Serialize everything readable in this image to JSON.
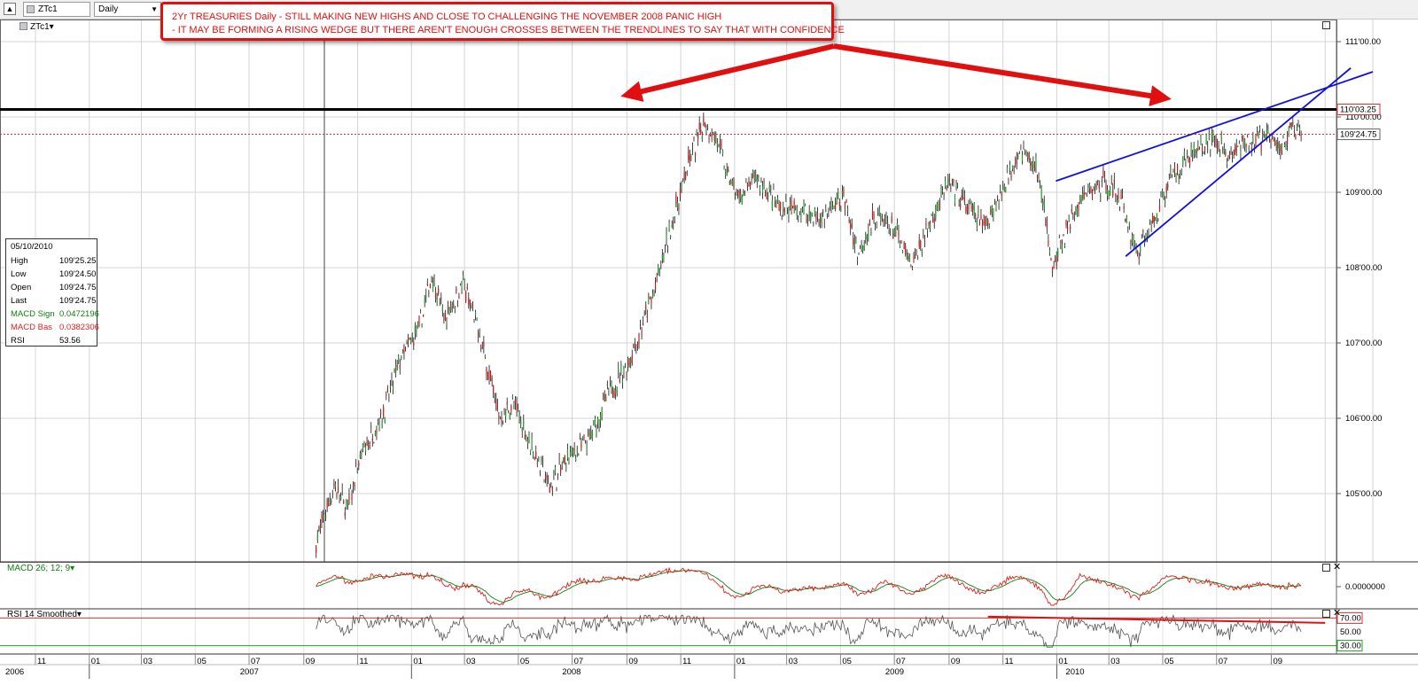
{
  "toolbar": {
    "ric": "ZTc1",
    "interval": "Daily"
  },
  "legend": {
    "main_series": "ZTc1▾"
  },
  "annotation": {
    "line1": "2Yr TREASURIES Daily - STILL MAKING NEW HIGHS AND CLOSE TO CHALLENGING THE NOVEMBER 2008 PANIC HIGH",
    "line2": "- IT MAY BE FORMING A RISING WEDGE BUT THERE AREN'T ENOUGH CROSSES BETWEEN THE TRENDLINES TO SAY THAT WITH CONFIDENCE"
  },
  "info_box": {
    "date": "05/10/2010",
    "rows": [
      {
        "label": "High",
        "value": "109'25.25"
      },
      {
        "label": "Low",
        "value": "109'24.50"
      },
      {
        "label": "Open",
        "value": "109'24.75"
      },
      {
        "label": "Last",
        "value": "109'24.75"
      },
      {
        "label": "MACD Sign",
        "value": "0.0472196"
      },
      {
        "label": "MACD Bas",
        "value": "0.0382306"
      },
      {
        "label": "RSI",
        "value": "53.56"
      }
    ]
  },
  "panels": {
    "macd_label": "MACD 26; 12; 9▾",
    "rsi_label": "RSI 14 Smoothed▾",
    "macd_zero": "0.0000000",
    "rsi_levels": [
      "70.00",
      "50.00",
      "30.00"
    ]
  },
  "colors": {
    "bull": "#2a9a2a",
    "bear": "#c02020",
    "annotation": "#e01010",
    "trendline": "#1010e0",
    "resistance": "#000000",
    "macd_signal": "#108010",
    "macd_base": "#e02020",
    "rsi_line": "#555555",
    "level_70": "#e03030",
    "level_30": "#20a020"
  },
  "chart_data": {
    "type": "candlestick",
    "title": "",
    "xlabel": "",
    "ylabel": "",
    "y_axis": {
      "range": [
        104.32,
        111.1
      ],
      "ticks": [
        {
          "value": 105.0,
          "label": "105'00.00"
        },
        {
          "value": 106.0,
          "label": "106'00.00"
        },
        {
          "value": 107.0,
          "label": "107'00.00"
        },
        {
          "value": 108.0,
          "label": "108'00.00"
        },
        {
          "value": 109.0,
          "label": "109'00.00"
        },
        {
          "value": 110.0,
          "label": "110'00.00"
        },
        {
          "value": 111.0,
          "label": "111'00.00"
        }
      ],
      "markers": [
        {
          "value": 110.1,
          "label": "110'03.25",
          "style": "resistance"
        },
        {
          "value": 109.77,
          "label": "109'24.75",
          "style": "last"
        }
      ]
    },
    "x_axis": {
      "month_ticks": [
        {
          "label": "11",
          "date": "2006-11"
        },
        {
          "label": "01",
          "date": "2007-01"
        },
        {
          "label": "03",
          "date": "2007-03"
        },
        {
          "label": "05",
          "date": "2007-05"
        },
        {
          "label": "07",
          "date": "2007-07"
        },
        {
          "label": "09",
          "date": "2007-09"
        },
        {
          "label": "11",
          "date": "2007-11"
        },
        {
          "label": "01",
          "date": "2008-01"
        },
        {
          "label": "03",
          "date": "2008-03"
        },
        {
          "label": "05",
          "date": "2008-05"
        },
        {
          "label": "07",
          "date": "2008-07"
        },
        {
          "label": "09",
          "date": "2008-09"
        },
        {
          "label": "11",
          "date": "2008-11"
        },
        {
          "label": "01",
          "date": "2009-01"
        },
        {
          "label": "03",
          "date": "2009-03"
        },
        {
          "label": "05",
          "date": "2009-05"
        },
        {
          "label": "07",
          "date": "2009-07"
        },
        {
          "label": "09",
          "date": "2009-09"
        },
        {
          "label": "11",
          "date": "2009-11"
        },
        {
          "label": "01",
          "date": "2010-01"
        },
        {
          "label": "03",
          "date": "2010-03"
        },
        {
          "label": "05",
          "date": "2010-05"
        },
        {
          "label": "07",
          "date": "2010-07"
        },
        {
          "label": "09",
          "date": "2010-09"
        }
      ],
      "year_ticks": [
        {
          "label": "2006",
          "date": "2006-11"
        },
        {
          "label": "2007",
          "date": "2007-01"
        },
        {
          "label": "2008",
          "date": "2008-01"
        },
        {
          "label": "2009",
          "date": "2009-01"
        },
        {
          "label": "2010",
          "date": "2010-01"
        }
      ]
    },
    "price_path": [
      {
        "date": "2007-09-15",
        "value": 104.35
      },
      {
        "date": "2007-10-05",
        "value": 105.1
      },
      {
        "date": "2007-10-20",
        "value": 104.8
      },
      {
        "date": "2007-11-05",
        "value": 105.5
      },
      {
        "date": "2007-12-01",
        "value": 106.1
      },
      {
        "date": "2007-12-20",
        "value": 106.8
      },
      {
        "date": "2008-01-10",
        "value": 107.2
      },
      {
        "date": "2008-01-24",
        "value": 107.9
      },
      {
        "date": "2008-02-08",
        "value": 107.3
      },
      {
        "date": "2008-02-28",
        "value": 107.8
      },
      {
        "date": "2008-03-18",
        "value": 107.1
      },
      {
        "date": "2008-04-10",
        "value": 106.0
      },
      {
        "date": "2008-04-25",
        "value": 106.2
      },
      {
        "date": "2008-05-10",
        "value": 105.8
      },
      {
        "date": "2008-06-05",
        "value": 105.1
      },
      {
        "date": "2008-06-28",
        "value": 105.5
      },
      {
        "date": "2008-07-20",
        "value": 105.7
      },
      {
        "date": "2008-08-10",
        "value": 106.3
      },
      {
        "date": "2008-09-01",
        "value": 106.7
      },
      {
        "date": "2008-09-15",
        "value": 107.1
      },
      {
        "date": "2008-10-05",
        "value": 107.8
      },
      {
        "date": "2008-10-20",
        "value": 108.5
      },
      {
        "date": "2008-11-10",
        "value": 109.4
      },
      {
        "date": "2008-11-28",
        "value": 109.95
      },
      {
        "date": "2008-12-12",
        "value": 109.7
      },
      {
        "date": "2008-12-22",
        "value": 109.3
      },
      {
        "date": "2009-01-05",
        "value": 108.9
      },
      {
        "date": "2009-01-25",
        "value": 109.2
      },
      {
        "date": "2009-02-20",
        "value": 108.8
      },
      {
        "date": "2009-03-15",
        "value": 108.75
      },
      {
        "date": "2009-04-10",
        "value": 108.65
      },
      {
        "date": "2009-05-05",
        "value": 108.95
      },
      {
        "date": "2009-05-20",
        "value": 108.2
      },
      {
        "date": "2009-06-10",
        "value": 108.7
      },
      {
        "date": "2009-07-01",
        "value": 108.5
      },
      {
        "date": "2009-07-20",
        "value": 108.0
      },
      {
        "date": "2009-08-10",
        "value": 108.6
      },
      {
        "date": "2009-08-30",
        "value": 109.1
      },
      {
        "date": "2009-09-15",
        "value": 108.9
      },
      {
        "date": "2009-10-10",
        "value": 108.55
      },
      {
        "date": "2009-10-30",
        "value": 109.0
      },
      {
        "date": "2009-11-20",
        "value": 109.6
      },
      {
        "date": "2009-12-10",
        "value": 109.3
      },
      {
        "date": "2009-12-28",
        "value": 108.0
      },
      {
        "date": "2010-01-15",
        "value": 108.6
      },
      {
        "date": "2010-02-05",
        "value": 109.0
      },
      {
        "date": "2010-02-25",
        "value": 109.15
      },
      {
        "date": "2010-03-15",
        "value": 108.9
      },
      {
        "date": "2010-04-01",
        "value": 108.2
      },
      {
        "date": "2010-04-20",
        "value": 108.6
      },
      {
        "date": "2010-05-10",
        "value": 109.2
      },
      {
        "date": "2010-06-01",
        "value": 109.5
      },
      {
        "date": "2010-06-25",
        "value": 109.7
      },
      {
        "date": "2010-07-15",
        "value": 109.5
      },
      {
        "date": "2010-08-10",
        "value": 109.65
      },
      {
        "date": "2010-08-25",
        "value": 109.75
      },
      {
        "date": "2010-09-10",
        "value": 109.6
      },
      {
        "date": "2010-09-25",
        "value": 109.85
      },
      {
        "date": "2010-10-05",
        "value": 109.77
      }
    ],
    "trendlines": [
      {
        "name": "upper",
        "from": {
          "date": "2009-12-31",
          "value": 109.15
        },
        "to": {
          "date": "2010-12-25",
          "value": 110.6
        }
      },
      {
        "name": "lower",
        "from": {
          "date": "2010-03-20",
          "value": 108.15
        },
        "to": {
          "date": "2010-11-30",
          "value": 110.65
        }
      }
    ],
    "rsi_trendline": {
      "from": {
        "date": "2009-10-15",
        "value": 72
      },
      "to": {
        "date": "2010-11-01",
        "value": 63
      }
    }
  }
}
